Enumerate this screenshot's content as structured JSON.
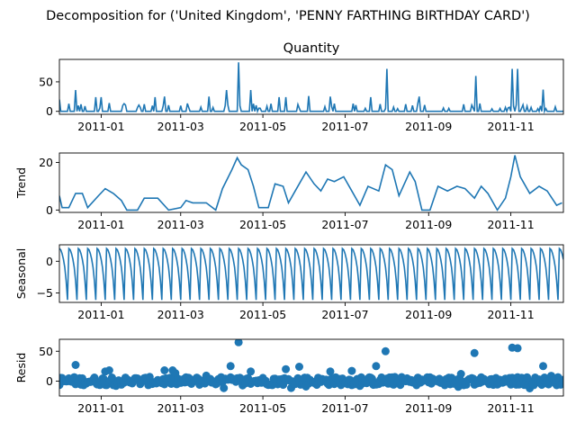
{
  "figure": {
    "suptitle": "Decomposition for ('United Kingdom', 'PENNY FARTHING BIRTHDAY CARD')"
  },
  "chart_data": [
    {
      "type": "line",
      "title": "Quantity",
      "ylabel": "",
      "xlim": [
        "2011-12-01",
        "2011-12-10"
      ],
      "ylim": [
        -5,
        88
      ],
      "yticks": [
        0,
        50
      ],
      "xticks": [
        "2011-01",
        "2011-03",
        "2011-05",
        "2011-07",
        "2011-09",
        "2011-11"
      ],
      "color": "#1f77b4",
      "pattern": "spiky",
      "peaks": [
        [
          "2010-12-01",
          20
        ],
        [
          "2010-12-13",
          36
        ],
        [
          "2010-12-28",
          24
        ],
        [
          "2011-01-01",
          24
        ],
        [
          "2011-01-07",
          14
        ],
        [
          "2011-01-18",
          13
        ],
        [
          "2011-02-10",
          24
        ],
        [
          "2011-02-17",
          25
        ],
        [
          "2011-03-22",
          25
        ],
        [
          "2011-04-04",
          36
        ],
        [
          "2011-04-13",
          83
        ],
        [
          "2011-04-22",
          36
        ],
        [
          "2011-05-13",
          24
        ],
        [
          "2011-05-18",
          24
        ],
        [
          "2011-06-04",
          26
        ],
        [
          "2011-06-20",
          25
        ],
        [
          "2011-07-20",
          24
        ],
        [
          "2011-08-01",
          72
        ],
        [
          "2011-08-25",
          25
        ],
        [
          "2011-10-06",
          60
        ],
        [
          "2011-11-02",
          72
        ],
        [
          "2011-11-06",
          72
        ],
        [
          "2011-11-25",
          37
        ]
      ]
    },
    {
      "type": "line",
      "title": "",
      "ylabel": "Trend",
      "ylim": [
        -1,
        24
      ],
      "yticks": [
        0,
        20
      ],
      "xticks": [
        "2011-01",
        "2011-03",
        "2011-05",
        "2011-07",
        "2011-09",
        "2011-11"
      ],
      "color": "#1f77b4",
      "pattern": "smooth",
      "points": [
        [
          "2010-12-01",
          6
        ],
        [
          "2010-12-03",
          1
        ],
        [
          "2010-12-08",
          1
        ],
        [
          "2010-12-13",
          7
        ],
        [
          "2010-12-18",
          7
        ],
        [
          "2010-12-22",
          1
        ],
        [
          "2010-12-30",
          6
        ],
        [
          "2011-01-04",
          9
        ],
        [
          "2011-01-10",
          7
        ],
        [
          "2011-01-16",
          4
        ],
        [
          "2011-01-20",
          0
        ],
        [
          "2011-01-28",
          0
        ],
        [
          "2011-02-02",
          5
        ],
        [
          "2011-02-12",
          5
        ],
        [
          "2011-02-20",
          0
        ],
        [
          "2011-03-01",
          1
        ],
        [
          "2011-03-05",
          4
        ],
        [
          "2011-03-10",
          3
        ],
        [
          "2011-03-20",
          3
        ],
        [
          "2011-03-27",
          0
        ],
        [
          "2011-04-01",
          9
        ],
        [
          "2011-04-08",
          17
        ],
        [
          "2011-04-12",
          22
        ],
        [
          "2011-04-15",
          19
        ],
        [
          "2011-04-20",
          17
        ],
        [
          "2011-04-24",
          10
        ],
        [
          "2011-04-28",
          1
        ],
        [
          "2011-05-05",
          1
        ],
        [
          "2011-05-10",
          11
        ],
        [
          "2011-05-16",
          10
        ],
        [
          "2011-05-20",
          3
        ],
        [
          "2011-05-25",
          8
        ],
        [
          "2011-06-02",
          16
        ],
        [
          "2011-06-08",
          11
        ],
        [
          "2011-06-13",
          8
        ],
        [
          "2011-06-18",
          13
        ],
        [
          "2011-06-23",
          12
        ],
        [
          "2011-06-30",
          14
        ],
        [
          "2011-07-06",
          8
        ],
        [
          "2011-07-12",
          2
        ],
        [
          "2011-07-18",
          10
        ],
        [
          "2011-07-26",
          8
        ],
        [
          "2011-07-31",
          19
        ],
        [
          "2011-08-05",
          17
        ],
        [
          "2011-08-10",
          6
        ],
        [
          "2011-08-18",
          16
        ],
        [
          "2011-08-22",
          12
        ],
        [
          "2011-08-27",
          0
        ],
        [
          "2011-09-02",
          0
        ],
        [
          "2011-09-08",
          10
        ],
        [
          "2011-09-15",
          8
        ],
        [
          "2011-09-22",
          10
        ],
        [
          "2011-09-28",
          9
        ],
        [
          "2011-10-05",
          5
        ],
        [
          "2011-10-10",
          10
        ],
        [
          "2011-10-15",
          7
        ],
        [
          "2011-10-22",
          0
        ],
        [
          "2011-10-28",
          5
        ],
        [
          "2011-11-01",
          14
        ],
        [
          "2011-11-04",
          23
        ],
        [
          "2011-11-08",
          14
        ],
        [
          "2011-11-15",
          7
        ],
        [
          "2011-11-22",
          10
        ],
        [
          "2011-11-28",
          8
        ],
        [
          "2011-12-05",
          2
        ],
        [
          "2011-12-09",
          3
        ]
      ]
    },
    {
      "type": "line",
      "title": "",
      "ylabel": "Seasonal",
      "ylim": [
        -6.5,
        2.6
      ],
      "yticks": [
        -5,
        0
      ],
      "xticks": [
        "2011-01",
        "2011-03",
        "2011-05",
        "2011-07",
        "2011-09",
        "2011-11"
      ],
      "color": "#1f77b4",
      "pattern": "periodic",
      "period_days": 7,
      "cycle_values": [
        2.0,
        1.8,
        1.2,
        0.3,
        -1.0,
        -3.1,
        -6.1
      ]
    },
    {
      "type": "scatter",
      "title": "",
      "ylabel": "Resid",
      "ylim": [
        -25,
        70
      ],
      "yticks": [
        0,
        50
      ],
      "xticks": [
        "2011-01",
        "2011-03",
        "2011-05",
        "2011-07",
        "2011-09",
        "2011-11"
      ],
      "color": "#1f77b4",
      "pattern": "noise",
      "outliers": [
        [
          "2010-12-13",
          27
        ],
        [
          "2011-01-04",
          16
        ],
        [
          "2011-01-07",
          18
        ],
        [
          "2011-02-17",
          18
        ],
        [
          "2011-02-23",
          18
        ],
        [
          "2011-04-07",
          25
        ],
        [
          "2011-04-13",
          65
        ],
        [
          "2011-04-22",
          16
        ],
        [
          "2011-05-18",
          20
        ],
        [
          "2011-05-28",
          24
        ],
        [
          "2011-06-20",
          16
        ],
        [
          "2011-07-06",
          17
        ],
        [
          "2011-07-24",
          25
        ],
        [
          "2011-07-31",
          50
        ],
        [
          "2011-10-05",
          47
        ],
        [
          "2011-11-02",
          56
        ],
        [
          "2011-11-06",
          55
        ],
        [
          "2011-11-25",
          25
        ]
      ]
    }
  ]
}
